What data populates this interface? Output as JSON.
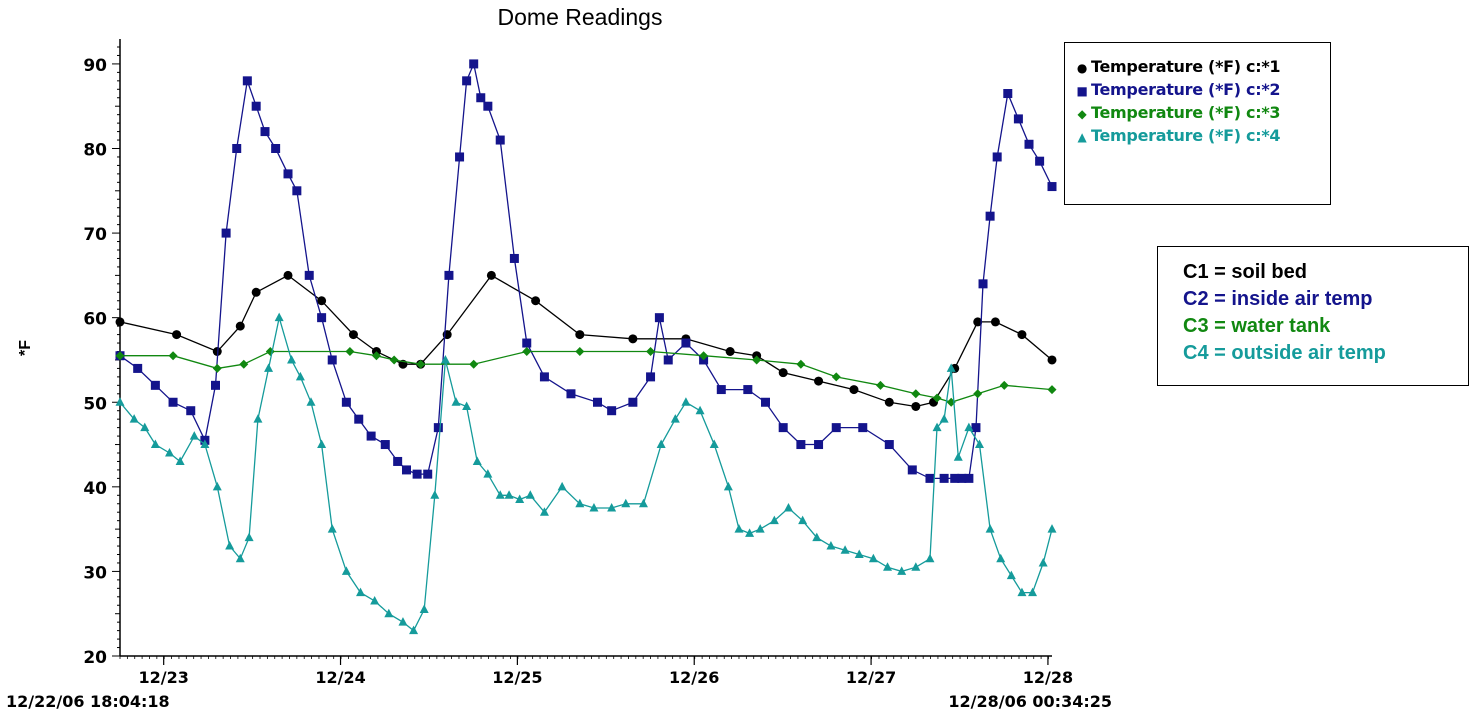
{
  "chart_data": {
    "type": "line",
    "title": "Dome Readings",
    "ylabel": "*F",
    "xlabel": "",
    "ylim": [
      20,
      92
    ],
    "yticks": [
      20,
      30,
      40,
      50,
      60,
      70,
      80,
      90
    ],
    "xlim": [
      0,
      5.27
    ],
    "x_start_label": "12/22/06 18:04:18",
    "x_end_label": "12/28/06 00:34:25",
    "xticks": [
      {
        "x": 0.247,
        "label": "12/23"
      },
      {
        "x": 1.247,
        "label": "12/24"
      },
      {
        "x": 2.247,
        "label": "12/25"
      },
      {
        "x": 3.247,
        "label": "12/26"
      },
      {
        "x": 4.247,
        "label": "12/27"
      },
      {
        "x": 5.247,
        "label": "12/28"
      }
    ],
    "grid": false,
    "legend_position": "top-right",
    "series": [
      {
        "name": "Temperature (*F) c:*1",
        "color": "#000000",
        "marker": "circle",
        "x": [
          0.0,
          0.32,
          0.55,
          0.68,
          0.77,
          0.95,
          1.14,
          1.32,
          1.45,
          1.6,
          1.7,
          1.85,
          2.1,
          2.35,
          2.6,
          2.9,
          3.2,
          3.45,
          3.6,
          3.75,
          3.95,
          4.15,
          4.35,
          4.5,
          4.6,
          4.72,
          4.85,
          4.95,
          5.1,
          5.27
        ],
        "y": [
          59.5,
          58,
          56,
          59,
          63,
          65,
          62,
          58,
          56,
          54.5,
          54.5,
          58,
          65,
          62,
          58,
          57.5,
          57.5,
          56,
          55.5,
          53.5,
          52.5,
          51.5,
          50,
          49.5,
          50,
          54,
          59.5,
          59.5,
          58,
          55
        ]
      },
      {
        "name": "Temperature (*F) c:*2",
        "color": "#14148c",
        "marker": "square",
        "x": [
          0.0,
          0.1,
          0.2,
          0.3,
          0.4,
          0.48,
          0.54,
          0.6,
          0.66,
          0.72,
          0.77,
          0.82,
          0.88,
          0.95,
          1.0,
          1.07,
          1.14,
          1.2,
          1.28,
          1.35,
          1.42,
          1.5,
          1.57,
          1.62,
          1.68,
          1.74,
          1.8,
          1.86,
          1.92,
          1.96,
          2.0,
          2.04,
          2.08,
          2.15,
          2.23,
          2.3,
          2.4,
          2.55,
          2.7,
          2.78,
          2.9,
          3.0,
          3.05,
          3.1,
          3.2,
          3.3,
          3.4,
          3.55,
          3.65,
          3.75,
          3.85,
          3.95,
          4.05,
          4.2,
          4.35,
          4.48,
          4.58,
          4.66,
          4.72,
          4.76,
          4.8,
          4.84,
          4.88,
          4.92,
          4.96,
          5.02,
          5.08,
          5.14,
          5.2,
          5.27
        ],
        "y": [
          55.5,
          54,
          52,
          50,
          49,
          45.5,
          52,
          70,
          80,
          88,
          85,
          82,
          80,
          77,
          75,
          65,
          60,
          55,
          50,
          48,
          46,
          45,
          43,
          42,
          41.5,
          41.5,
          47,
          65,
          79,
          88,
          90,
          86,
          85,
          81,
          67,
          57,
          53,
          51,
          50,
          49,
          50,
          53,
          60,
          55,
          57,
          55,
          51.5,
          51.5,
          50,
          47,
          45,
          45,
          47,
          47,
          45,
          42,
          41,
          41,
          41,
          41,
          41,
          47,
          64,
          72,
          79,
          86.5,
          83.5,
          80.5,
          78.5,
          75.5
        ]
      },
      {
        "name": "Temperature (*F) c:*3",
        "color": "#118811",
        "marker": "diamond",
        "x": [
          0.0,
          0.3,
          0.55,
          0.7,
          0.85,
          1.3,
          1.45,
          1.55,
          1.7,
          2.0,
          2.3,
          2.6,
          3.0,
          3.3,
          3.6,
          3.85,
          4.05,
          4.3,
          4.5,
          4.62,
          4.7,
          4.85,
          5.0,
          5.27
        ],
        "y": [
          55.5,
          55.5,
          54,
          54.5,
          56,
          56,
          55.5,
          55,
          54.5,
          54.5,
          56,
          56,
          56,
          55.5,
          55,
          54.5,
          53,
          52,
          51,
          50.5,
          50,
          51,
          52,
          51.5
        ]
      },
      {
        "name": "Temperature (*F) c:*4",
        "color": "#159b9b",
        "marker": "triangle",
        "x": [
          0.0,
          0.08,
          0.14,
          0.2,
          0.28,
          0.34,
          0.42,
          0.48,
          0.55,
          0.62,
          0.68,
          0.73,
          0.78,
          0.84,
          0.9,
          0.97,
          1.02,
          1.08,
          1.14,
          1.2,
          1.28,
          1.36,
          1.44,
          1.52,
          1.6,
          1.66,
          1.72,
          1.78,
          1.84,
          1.9,
          1.96,
          2.02,
          2.08,
          2.15,
          2.2,
          2.26,
          2.32,
          2.4,
          2.5,
          2.6,
          2.68,
          2.78,
          2.86,
          2.96,
          3.06,
          3.14,
          3.2,
          3.28,
          3.36,
          3.44,
          3.5,
          3.56,
          3.62,
          3.7,
          3.78,
          3.86,
          3.94,
          4.02,
          4.1,
          4.18,
          4.26,
          4.34,
          4.42,
          4.5,
          4.58,
          4.62,
          4.66,
          4.7,
          4.74,
          4.8,
          4.86,
          4.92,
          4.98,
          5.04,
          5.1,
          5.16,
          5.22,
          5.27
        ],
        "y": [
          50,
          48,
          47,
          45,
          44,
          43,
          46,
          45,
          40,
          33,
          31.5,
          34,
          48,
          54,
          60,
          55,
          53,
          50,
          45,
          35,
          30,
          27.5,
          26.5,
          25,
          24,
          23,
          25.5,
          39,
          55,
          50,
          49.5,
          43,
          41.5,
          39,
          39,
          38.5,
          39,
          37,
          40,
          38,
          37.5,
          37.5,
          38,
          38,
          45,
          48,
          50,
          49,
          45,
          40,
          35,
          34.5,
          35,
          36,
          37.5,
          36,
          34,
          33,
          32.5,
          32,
          31.5,
          30.5,
          30,
          30.5,
          31.5,
          47,
          48,
          54,
          43.5,
          47,
          45,
          35,
          31.5,
          29.5,
          27.5,
          27.5,
          31,
          35
        ]
      }
    ],
    "annotation": {
      "lines": [
        {
          "text": "C1 = soil bed",
          "color": "#000000"
        },
        {
          "text": "C2 = inside air temp",
          "color": "#14148c"
        },
        {
          "text": "C3 = water tank",
          "color": "#118811"
        },
        {
          "text": "C4 = outside air temp",
          "color": "#159b9b"
        }
      ]
    }
  }
}
